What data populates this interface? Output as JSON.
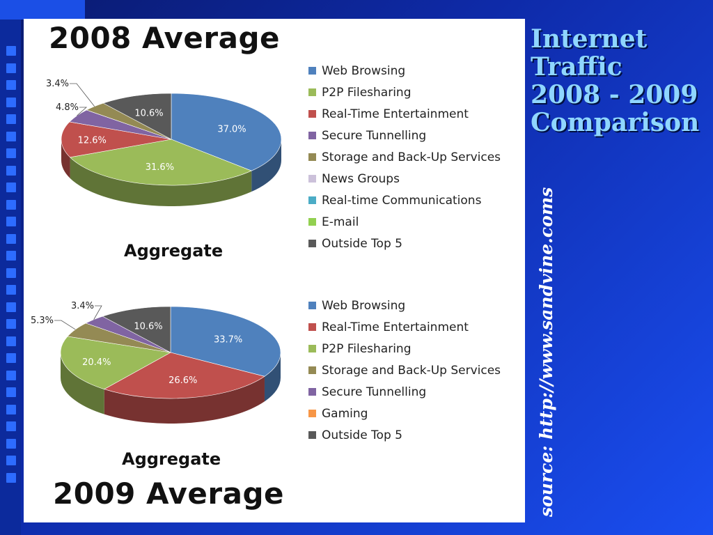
{
  "slide": {
    "title_lines": [
      "Internet",
      "Traffic",
      "2008 - 2009",
      "Comparison"
    ],
    "source": "source: http://www.sandvine.coms"
  },
  "chart_data": [
    {
      "type": "pie",
      "title": "2008 Average",
      "subtitle": "Aggregate",
      "legend": [
        {
          "name": "Web Browsing",
          "color": "#4f81bd"
        },
        {
          "name": "P2P Filesharing",
          "color": "#9bbb59"
        },
        {
          "name": "Real-Time Entertainment",
          "color": "#c0504d"
        },
        {
          "name": "Secure Tunnelling",
          "color": "#8064a2"
        },
        {
          "name": "Storage and Back-Up Services",
          "color": "#948a54"
        },
        {
          "name": "News Groups",
          "color": "#ccc1da"
        },
        {
          "name": "Real-time Communications",
          "color": "#4bacc6"
        },
        {
          "name": "E-mail",
          "color": "#92d050"
        },
        {
          "name": "Outside Top 5",
          "color": "#595959"
        }
      ],
      "slices": [
        {
          "name": "Web Browsing",
          "value": 37.0,
          "label": "37.0%",
          "color": "#4f81bd"
        },
        {
          "name": "P2P Filesharing",
          "value": 31.6,
          "label": "31.6%",
          "color": "#9bbb59"
        },
        {
          "name": "Real-Time Entertainment",
          "value": 12.6,
          "label": "12.6%",
          "color": "#c0504d"
        },
        {
          "name": "Secure Tunnelling",
          "value": 4.8,
          "label": "4.8%",
          "color": "#8064a2"
        },
        {
          "name": "Storage and Back-Up Services",
          "value": 3.4,
          "label": "3.4%",
          "color": "#948a54"
        },
        {
          "name": "Outside Top 5",
          "value": 10.6,
          "label": "10.6%",
          "color": "#595959"
        }
      ]
    },
    {
      "type": "pie",
      "title": "2009 Average",
      "subtitle": "Aggregate",
      "legend": [
        {
          "name": "Web Browsing",
          "color": "#4f81bd"
        },
        {
          "name": "Real-Time Entertainment",
          "color": "#c0504d"
        },
        {
          "name": "P2P Filesharing",
          "color": "#9bbb59"
        },
        {
          "name": "Storage and Back-Up Services",
          "color": "#948a54"
        },
        {
          "name": "Secure Tunnelling",
          "color": "#8064a2"
        },
        {
          "name": "Gaming",
          "color": "#f79646"
        },
        {
          "name": "Outside Top 5",
          "color": "#595959"
        }
      ],
      "slices": [
        {
          "name": "Web Browsing",
          "value": 33.7,
          "label": "33.7%",
          "color": "#4f81bd"
        },
        {
          "name": "Real-Time Entertainment",
          "value": 26.6,
          "label": "26.6%",
          "color": "#c0504d"
        },
        {
          "name": "P2P Filesharing",
          "value": 20.4,
          "label": "20.4%",
          "color": "#9bbb59"
        },
        {
          "name": "Storage and Back-Up Services",
          "value": 5.3,
          "label": "5.3%",
          "color": "#948a54"
        },
        {
          "name": "Secure Tunnelling",
          "value": 3.4,
          "label": "3.4%",
          "color": "#8064a2"
        },
        {
          "name": "Outside Top 5",
          "value": 10.6,
          "label": "10.6%",
          "color": "#595959"
        }
      ]
    }
  ]
}
